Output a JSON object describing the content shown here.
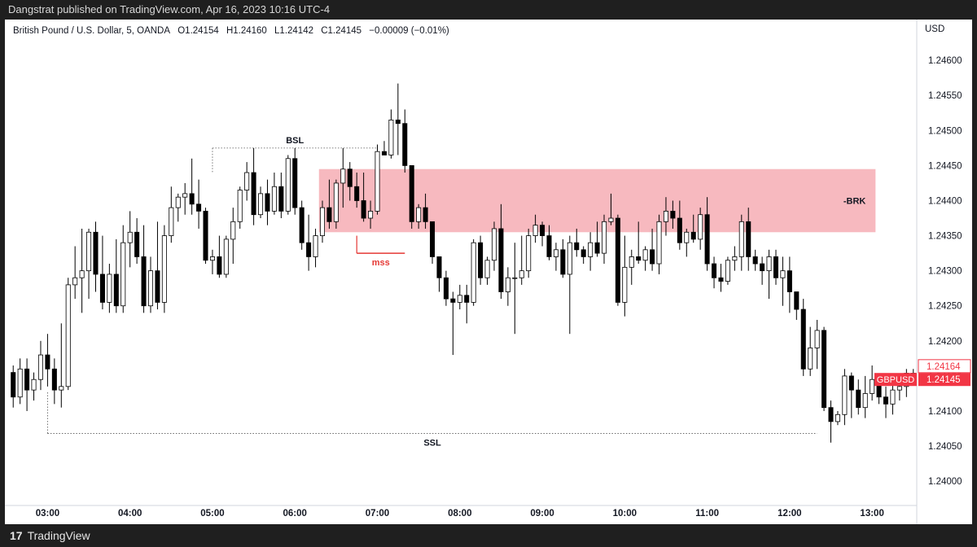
{
  "header": {
    "published": "Dangstrat published on TradingView.com, Apr 16, 2023 10:16 UTC-4"
  },
  "legend": {
    "symbol": "British Pound / U.S. Dollar, 5, OANDA",
    "open": "O1.24154",
    "high": "H1.24160",
    "low": "L1.24142",
    "close": "C1.24145",
    "change": "−0.00009 (−0.01%)"
  },
  "price_axis": {
    "title": "USD",
    "current_price_label": "1.24145",
    "symbol_tag": "GBPUSD",
    "pre_price_label": "1.24164"
  },
  "footer": {
    "brand": "TradingView",
    "brand_mark": "17"
  },
  "colors": {
    "zone_fill": "#f7b9bf",
    "mss": "#e53935",
    "current_price": "#f23645",
    "bull_body": "#ffffff",
    "bear_body": "#000000"
  },
  "chart_data": {
    "type": "candlestick",
    "symbol": "GBPUSD",
    "timeframe": "5",
    "ylim": [
      1.2397,
      1.24635
    ],
    "y_ticks": [
      1.24,
      1.2405,
      1.241,
      1.2415,
      1.242,
      1.2425,
      1.243,
      1.2435,
      1.244,
      1.2445,
      1.245,
      1.2455,
      1.246
    ],
    "y_tick_labels": [
      "1.24000",
      "1.24050",
      "1.24100",
      "1.24150",
      "1.24200",
      "1.24250",
      "1.24300",
      "1.24350",
      "1.24400",
      "1.24450",
      "1.24500",
      "1.24550",
      "1.24600"
    ],
    "x_ticks": [
      {
        "bar": 5,
        "label": "03:00"
      },
      {
        "bar": 17,
        "label": "04:00"
      },
      {
        "bar": 29,
        "label": "05:00"
      },
      {
        "bar": 41,
        "label": "06:00"
      },
      {
        "bar": 53,
        "label": "07:00"
      },
      {
        "bar": 65,
        "label": "08:00"
      },
      {
        "bar": 77,
        "label": "09:00"
      },
      {
        "bar": 89,
        "label": "10:00"
      },
      {
        "bar": 101,
        "label": "11:00"
      },
      {
        "bar": 113,
        "label": "12:00"
      },
      {
        "bar": 125,
        "label": "13:00"
      }
    ],
    "bar_count": 132,
    "candles": [
      [
        1.24155,
        1.24165,
        1.24105,
        1.2412
      ],
      [
        1.2412,
        1.24175,
        1.2411,
        1.2416
      ],
      [
        1.2416,
        1.24175,
        1.241,
        1.2413
      ],
      [
        1.2413,
        1.24155,
        1.24115,
        1.24145
      ],
      [
        1.24145,
        1.242,
        1.2413,
        1.2418
      ],
      [
        1.2418,
        1.2421,
        1.24135,
        1.2416
      ],
      [
        1.2416,
        1.24175,
        1.2411,
        1.2413
      ],
      [
        1.2413,
        1.24225,
        1.24105,
        1.24135
      ],
      [
        1.24135,
        1.2429,
        1.2413,
        1.2428
      ],
      [
        1.2428,
        1.24335,
        1.2426,
        1.2429
      ],
      [
        1.2429,
        1.2436,
        1.2424,
        1.243
      ],
      [
        1.243,
        1.2436,
        1.2426,
        1.24355
      ],
      [
        1.24355,
        1.2437,
        1.2427,
        1.24295
      ],
      [
        1.24295,
        1.2435,
        1.24245,
        1.24255
      ],
      [
        1.24255,
        1.2431,
        1.2424,
        1.24295
      ],
      [
        1.24295,
        1.24345,
        1.2424,
        1.2425
      ],
      [
        1.2425,
        1.24365,
        1.2424,
        1.2434
      ],
      [
        1.2434,
        1.24385,
        1.24305,
        1.24355
      ],
      [
        1.24355,
        1.24375,
        1.2431,
        1.2432
      ],
      [
        1.2432,
        1.24365,
        1.2424,
        1.2425
      ],
      [
        1.2425,
        1.2432,
        1.2424,
        1.243
      ],
      [
        1.243,
        1.2437,
        1.24245,
        1.24255
      ],
      [
        1.24255,
        1.24365,
        1.2424,
        1.2435
      ],
      [
        1.2435,
        1.2442,
        1.2434,
        1.2439
      ],
      [
        1.2439,
        1.2441,
        1.2437,
        1.24405
      ],
      [
        1.24405,
        1.24425,
        1.2438,
        1.2441
      ],
      [
        1.2441,
        1.2446,
        1.2438,
        1.24395
      ],
      [
        1.24395,
        1.2443,
        1.2436,
        1.24385
      ],
      [
        1.24385,
        1.2439,
        1.2431,
        1.24315
      ],
      [
        1.24315,
        1.2433,
        1.24295,
        1.2432
      ],
      [
        1.2432,
        1.2435,
        1.2429,
        1.24295
      ],
      [
        1.24295,
        1.2435,
        1.2429,
        1.24345
      ],
      [
        1.24345,
        1.2439,
        1.2431,
        1.2437
      ],
      [
        1.2437,
        1.2442,
        1.2436,
        1.24415
      ],
      [
        1.24415,
        1.24455,
        1.244,
        1.2444
      ],
      [
        1.2444,
        1.24475,
        1.24365,
        1.2438
      ],
      [
        1.2438,
        1.2442,
        1.24375,
        1.2441
      ],
      [
        1.2441,
        1.2443,
        1.24365,
        1.24385
      ],
      [
        1.24385,
        1.2444,
        1.2438,
        1.2442
      ],
      [
        1.2442,
        1.2444,
        1.24375,
        1.24385
      ],
      [
        1.24385,
        1.24465,
        1.2438,
        1.2446
      ],
      [
        1.2446,
        1.24475,
        1.2438,
        1.2439
      ],
      [
        1.2439,
        1.244,
        1.2433,
        1.2434
      ],
      [
        1.2434,
        1.2438,
        1.243,
        1.2432
      ],
      [
        1.2432,
        1.2436,
        1.24305,
        1.2435
      ],
      [
        1.2435,
        1.244,
        1.2434,
        1.2439
      ],
      [
        1.2439,
        1.2443,
        1.2436,
        1.2437
      ],
      [
        1.2437,
        1.2443,
        1.2436,
        1.24425
      ],
      [
        1.24425,
        1.24475,
        1.2439,
        1.24445
      ],
      [
        1.24445,
        1.24455,
        1.244,
        1.2442
      ],
      [
        1.2442,
        1.2444,
        1.2439,
        1.244
      ],
      [
        1.244,
        1.2444,
        1.2437,
        1.24375
      ],
      [
        1.24375,
        1.244,
        1.2436,
        1.24385
      ],
      [
        1.24385,
        1.2448,
        1.2438,
        1.2447
      ],
      [
        1.2447,
        1.24485,
        1.24465,
        1.24465
      ],
      [
        1.24465,
        1.2453,
        1.2446,
        1.24515
      ],
      [
        1.24515,
        1.24567,
        1.24465,
        1.2451
      ],
      [
        1.2451,
        1.2453,
        1.2444,
        1.2445
      ],
      [
        1.2445,
        1.2445,
        1.2436,
        1.2437
      ],
      [
        1.2437,
        1.24395,
        1.2436,
        1.2439
      ],
      [
        1.2439,
        1.2441,
        1.2436,
        1.2437
      ],
      [
        1.2437,
        1.2437,
        1.2431,
        1.2432
      ],
      [
        1.2432,
        1.2432,
        1.2427,
        1.2429
      ],
      [
        1.2429,
        1.243,
        1.2425,
        1.2426
      ],
      [
        1.2426,
        1.2427,
        1.2418,
        1.24255
      ],
      [
        1.24255,
        1.2428,
        1.24245,
        1.24265
      ],
      [
        1.24265,
        1.2428,
        1.24225,
        1.24255
      ],
      [
        1.24255,
        1.24345,
        1.2425,
        1.2434
      ],
      [
        1.2434,
        1.2435,
        1.2428,
        1.2429
      ],
      [
        1.2429,
        1.2432,
        1.2428,
        1.24315
      ],
      [
        1.24315,
        1.2437,
        1.243,
        1.2436
      ],
      [
        1.2436,
        1.24395,
        1.2426,
        1.2427
      ],
      [
        1.2427,
        1.24305,
        1.2425,
        1.2429
      ],
      [
        1.2429,
        1.2434,
        1.2421,
        1.2429
      ],
      [
        1.2429,
        1.2435,
        1.2428,
        1.243
      ],
      [
        1.243,
        1.2436,
        1.2429,
        1.2435
      ],
      [
        1.2435,
        1.2438,
        1.2434,
        1.24365
      ],
      [
        1.24365,
        1.2437,
        1.24335,
        1.2435
      ],
      [
        1.2435,
        1.24365,
        1.24315,
        1.2432
      ],
      [
        1.2432,
        1.2434,
        1.243,
        1.2433
      ],
      [
        1.2433,
        1.24345,
        1.2429,
        1.24295
      ],
      [
        1.24295,
        1.2435,
        1.2421,
        1.2434
      ],
      [
        1.2434,
        1.2436,
        1.2432,
        1.2433
      ],
      [
        1.2433,
        1.24335,
        1.2431,
        1.2432
      ],
      [
        1.2432,
        1.24355,
        1.243,
        1.2434
      ],
      [
        1.2434,
        1.2437,
        1.2432,
        1.24325
      ],
      [
        1.24325,
        1.2438,
        1.2431,
        1.2437
      ],
      [
        1.2437,
        1.2441,
        1.24365,
        1.24375
      ],
      [
        1.24375,
        1.2438,
        1.2425,
        1.24255
      ],
      [
        1.24255,
        1.2435,
        1.24235,
        1.24305
      ],
      [
        1.24305,
        1.2433,
        1.2428,
        1.2432
      ],
      [
        1.2432,
        1.2437,
        1.2431,
        1.24315
      ],
      [
        1.24315,
        1.24335,
        1.243,
        1.2433
      ],
      [
        1.2433,
        1.2436,
        1.243,
        1.2431
      ],
      [
        1.2431,
        1.2438,
        1.24295,
        1.2437
      ],
      [
        1.2437,
        1.24405,
        1.2435,
        1.24385
      ],
      [
        1.24385,
        1.244,
        1.2436,
        1.24375
      ],
      [
        1.24375,
        1.244,
        1.2433,
        1.2434
      ],
      [
        1.2434,
        1.2436,
        1.2432,
        1.24355
      ],
      [
        1.24355,
        1.2438,
        1.2434,
        1.24345
      ],
      [
        1.24345,
        1.2439,
        1.2433,
        1.2438
      ],
      [
        1.2438,
        1.24405,
        1.243,
        1.2431
      ],
      [
        1.2431,
        1.2432,
        1.24275,
        1.2429
      ],
      [
        1.2429,
        1.2431,
        1.2427,
        1.24285
      ],
      [
        1.24285,
        1.2432,
        1.2428,
        1.24315
      ],
      [
        1.24315,
        1.24335,
        1.243,
        1.2432
      ],
      [
        1.2432,
        1.2438,
        1.243,
        1.2437
      ],
      [
        1.2437,
        1.2439,
        1.243,
        1.2432
      ],
      [
        1.2432,
        1.2433,
        1.243,
        1.2431
      ],
      [
        1.2431,
        1.2432,
        1.2428,
        1.243
      ],
      [
        1.243,
        1.2433,
        1.2426,
        1.2432
      ],
      [
        1.2432,
        1.2433,
        1.2428,
        1.2429
      ],
      [
        1.2429,
        1.2432,
        1.2425,
        1.243
      ],
      [
        1.243,
        1.2432,
        1.2424,
        1.2427
      ],
      [
        1.2427,
        1.2427,
        1.2423,
        1.24245
      ],
      [
        1.24245,
        1.2426,
        1.2415,
        1.2416
      ],
      [
        1.2416,
        1.2422,
        1.2415,
        1.2419
      ],
      [
        1.2419,
        1.2423,
        1.2416,
        1.24215
      ],
      [
        1.24215,
        1.2422,
        1.241,
        1.24105
      ],
      [
        1.24105,
        1.24115,
        1.24055,
        1.24085
      ],
      [
        1.24085,
        1.241,
        1.2408,
        1.24095
      ],
      [
        1.24095,
        1.2416,
        1.2408,
        1.2415
      ],
      [
        1.2415,
        1.24155,
        1.2409,
        1.2413
      ],
      [
        1.2413,
        1.24145,
        1.24095,
        1.24105
      ],
      [
        1.24105,
        1.2415,
        1.2409,
        1.24125
      ],
      [
        1.24125,
        1.24165,
        1.24115,
        1.24145
      ],
      [
        1.24145,
        1.2415,
        1.2411,
        1.2412
      ],
      [
        1.2412,
        1.24135,
        1.2409,
        1.2411
      ],
      [
        1.2411,
        1.2414,
        1.24095,
        1.2413
      ],
      [
        1.2413,
        1.2415,
        1.24115,
        1.24135
      ],
      [
        1.24135,
        1.2416,
        1.2412,
        1.24154
      ],
      [
        1.24154,
        1.2416,
        1.24142,
        1.24145
      ]
    ],
    "annotations": [
      {
        "kind": "line",
        "label": "BSL",
        "style": "dotted",
        "y": 1.24475,
        "from_bar": 29,
        "to_bar": 53
      },
      {
        "kind": "line",
        "label": "SSL",
        "style": "dotted",
        "y": 1.24068,
        "from_bar": 5,
        "to_bar": 117
      },
      {
        "kind": "zone",
        "label": "-BRK",
        "y_top": 1.24445,
        "y_bottom": 1.24355,
        "from_bar": 45,
        "to_bar": 125
      },
      {
        "kind": "line",
        "label": "mss",
        "style": "solid",
        "y": 1.24325,
        "from_bar": 50,
        "to_bar": 57
      }
    ],
    "current_price": 1.24145,
    "pre_price": 1.24164
  }
}
